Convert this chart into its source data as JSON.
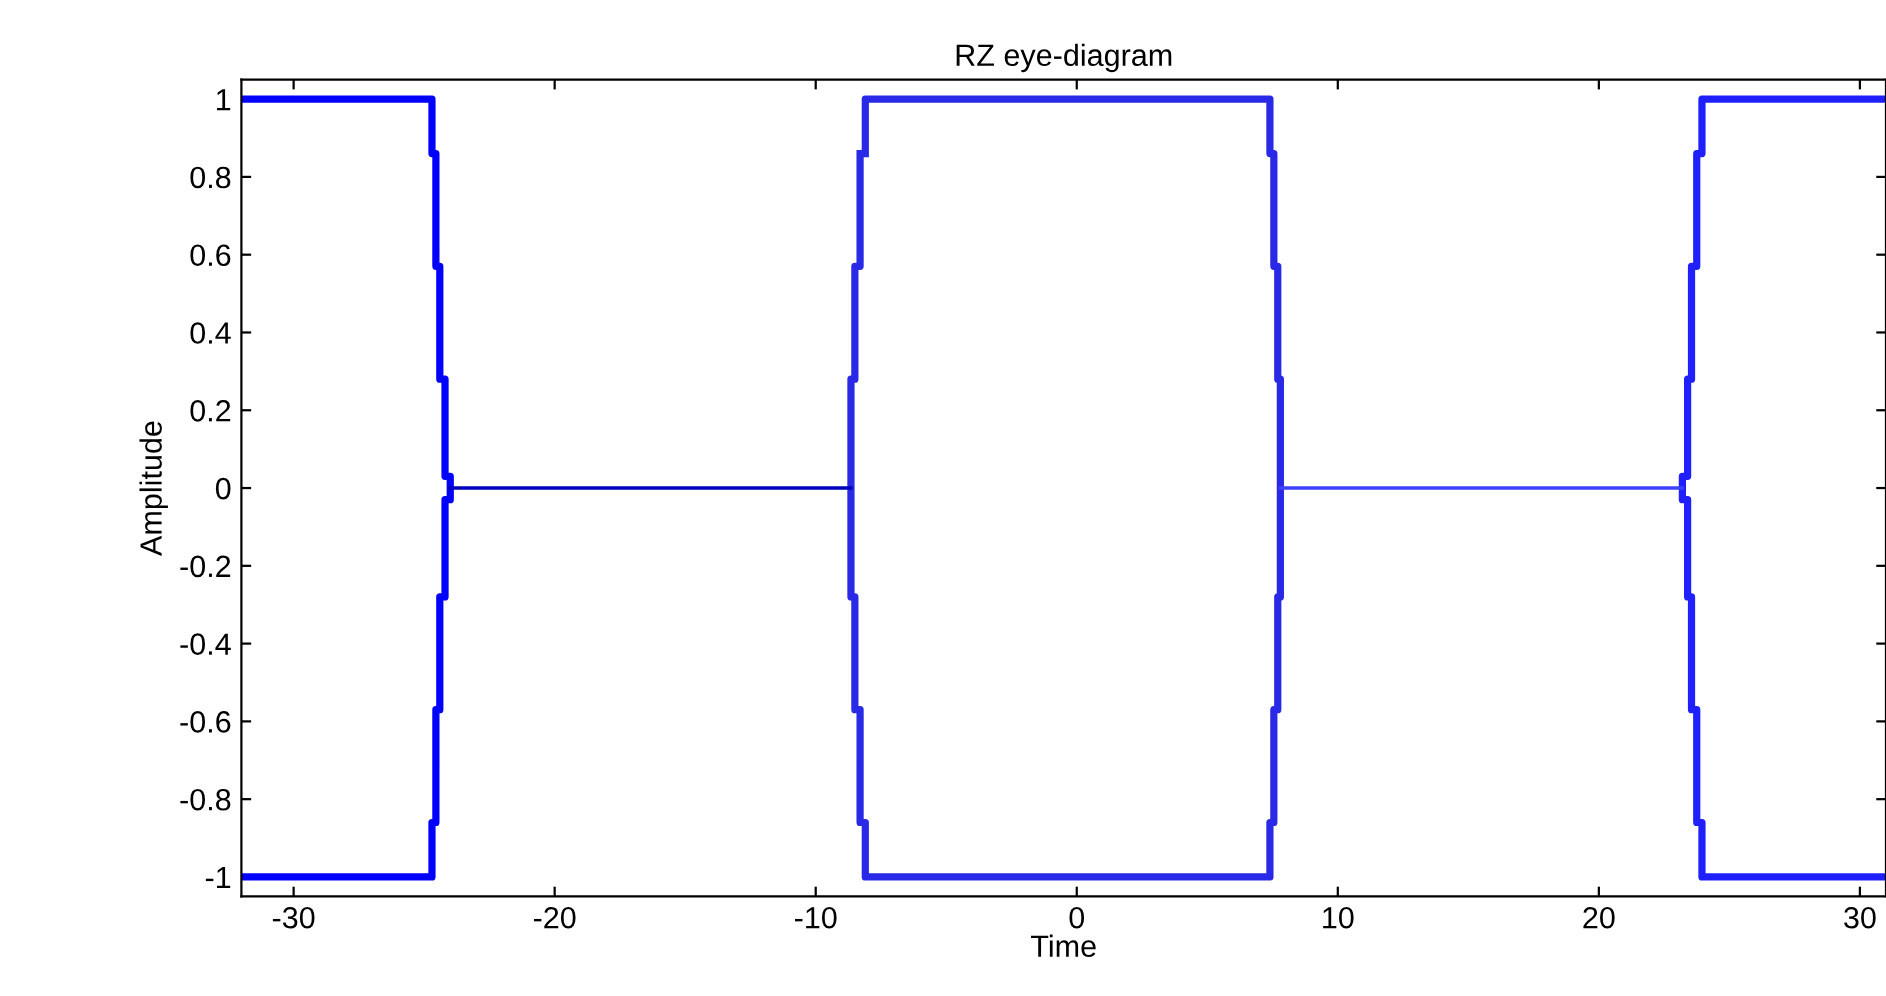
{
  "chart_data": {
    "type": "line",
    "title": "RZ eye-diagram",
    "xlabel": "Time",
    "ylabel": "Amplitude",
    "xlim": [
      -32,
      31
    ],
    "ylim": [
      -1.05,
      1.05
    ],
    "xticks": [
      -30,
      -20,
      -10,
      0,
      10,
      20,
      30
    ],
    "yticks": [
      {
        "value": -1,
        "label": "-1"
      },
      {
        "value": -0.8,
        "label": "-0.8"
      },
      {
        "value": -0.6,
        "label": "-0.6"
      },
      {
        "value": -0.4,
        "label": "-0.4"
      },
      {
        "value": -0.2,
        "label": "-0.2"
      },
      0,
      0.2,
      0.4,
      0.6,
      0.8,
      1
    ],
    "grid": false,
    "marker": "none",
    "line_style": "solid",
    "series": [
      {
        "color": "#0000ff",
        "x": [
          -32,
          -24.7,
          -24.7,
          -24.55,
          -24.55,
          -24.4,
          -24.4,
          -24.2,
          -24.2,
          -24.0,
          -24.0,
          -24.2,
          -24.2,
          -24.4,
          -24.4,
          -24.55,
          -24.55,
          -24.7,
          -24.7,
          -32
        ],
        "values": [
          1,
          1,
          0.86,
          0.86,
          0.57,
          0.57,
          0.28,
          0.28,
          0.03,
          0.03,
          -0.03,
          -0.03,
          -0.28,
          -0.28,
          -0.57,
          -0.57,
          -0.86,
          -0.86,
          -1,
          -1
        ]
      },
      {
        "color": "#2a2ae6",
        "x": [
          -8.1,
          -8.1,
          7.4,
          7.4,
          7.55,
          7.55,
          7.7,
          7.7,
          7.8,
          7.8,
          7.7,
          7.7,
          7.55,
          7.55,
          7.4,
          7.4,
          -8.1,
          -8.1,
          -8.3,
          -8.3,
          -8.5,
          -8.5,
          -8.65,
          -8.65,
          -8.5,
          -8.5,
          -8.3,
          -8.3
        ],
        "values": [
          0.86,
          1,
          1,
          0.86,
          0.86,
          0.57,
          0.57,
          0.28,
          0.28,
          -0.28,
          -0.28,
          -0.57,
          -0.57,
          -0.86,
          -0.86,
          -1,
          -1,
          -0.86,
          -0.86,
          -0.57,
          -0.57,
          -0.28,
          -0.28,
          0.28,
          0.28,
          0.57,
          0.57,
          0.86
        ]
      },
      {
        "color": "#2020ff",
        "x": [
          31,
          23.95,
          23.95,
          23.75,
          23.75,
          23.55,
          23.55,
          23.4,
          23.4,
          23.2,
          23.2,
          23.4,
          23.4,
          23.55,
          23.55,
          23.75,
          23.75,
          23.95,
          23.95,
          31
        ],
        "values": [
          1,
          1,
          0.86,
          0.86,
          0.57,
          0.57,
          0.28,
          0.28,
          0.03,
          0.03,
          -0.03,
          -0.03,
          -0.28,
          -0.28,
          -0.57,
          -0.57,
          -0.86,
          -0.86,
          -1,
          -1
        ]
      },
      {
        "color": "#0000be",
        "x": [
          -24.0,
          -8.65
        ],
        "values": [
          0,
          0
        ]
      },
      {
        "color": "#4040ff",
        "x": [
          7.8,
          23.2
        ],
        "values": [
          0,
          0
        ]
      }
    ]
  }
}
